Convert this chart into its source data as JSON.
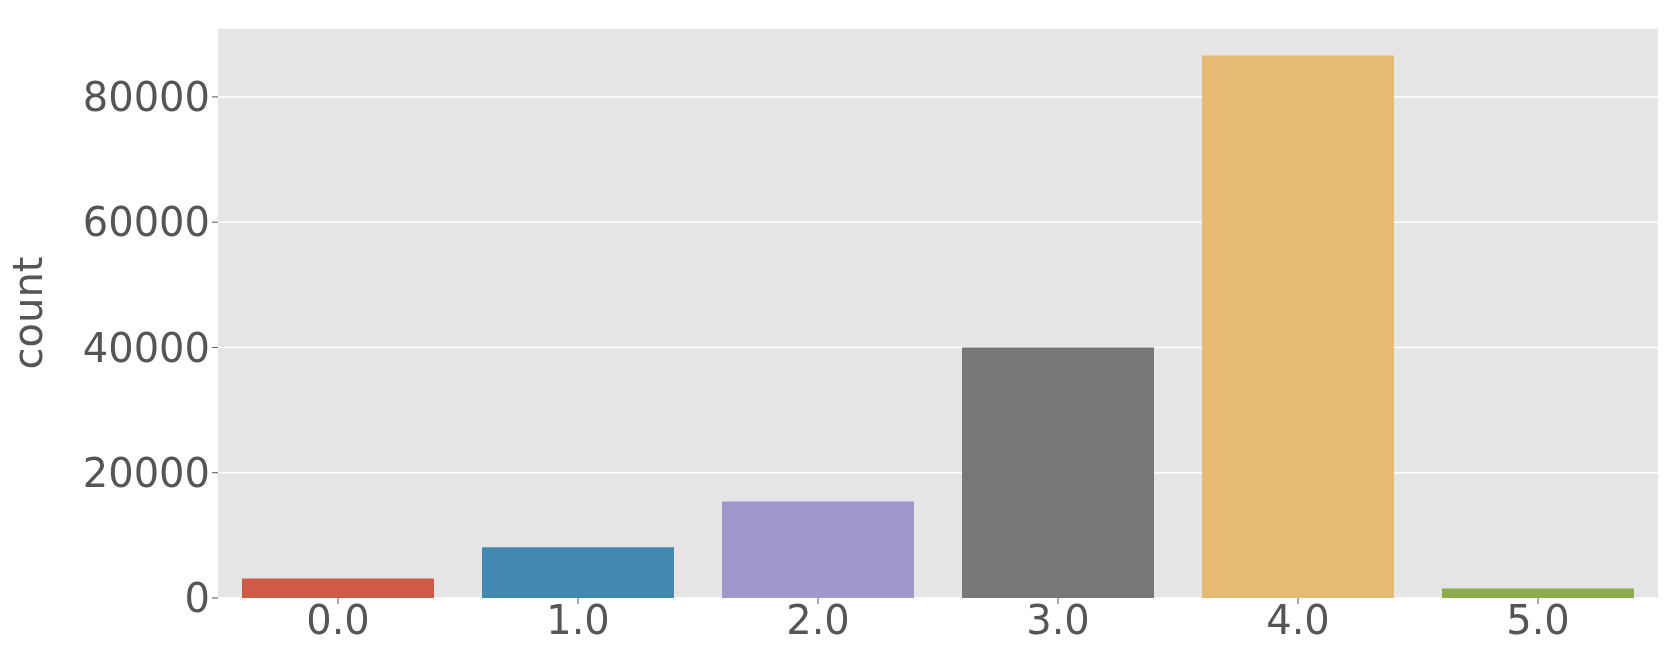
{
  "chart_data": {
    "type": "bar",
    "ylabel": "count",
    "categories": [
      "0.0",
      "1.0",
      "2.0",
      "3.0",
      "4.0",
      "5.0"
    ],
    "values": [
      3100,
      8100,
      15400,
      40000,
      86600,
      1500
    ],
    "colors": [
      "#cf5b46",
      "#4388b0",
      "#9e98cb",
      "#777777",
      "#e6ba72",
      "#8bac4f"
    ],
    "ylim": [
      0,
      91000
    ],
    "yticks": [
      0,
      20000,
      40000,
      60000,
      80000
    ],
    "grid": "y",
    "legend": false
  }
}
